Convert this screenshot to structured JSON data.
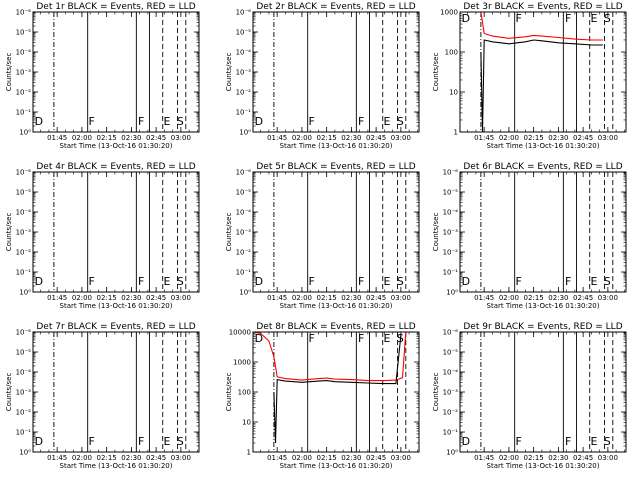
{
  "chart_data": [
    {
      "type": "line",
      "title": "Det 1r BLACK = Events, RED = LLD",
      "xlabel": "Start Time (13-Oct-16 01:30:20)",
      "ylabel": "Counts/sec",
      "yticks": [
        "10⁰",
        "10⁻¹",
        "10⁻²",
        "10⁻³",
        "10⁻⁴",
        "10⁻⁵",
        "10⁻⁶"
      ],
      "ylog": true,
      "ylim_exp": [
        -6,
        0
      ],
      "xticks": [
        "01:45",
        "02:00",
        "02:15",
        "02:30",
        "02:45",
        "03:00"
      ],
      "xlim": [
        "01:30:20",
        "03:11"
      ],
      "markers": [
        "D",
        "F",
        "F",
        "E",
        "S"
      ],
      "series": []
    },
    {
      "type": "line",
      "title": "Det 2r BLACK = Events, RED = LLD",
      "xlabel": "Start Time (13-Oct-16 01:30:20)",
      "ylabel": "Counts/sec",
      "yticks": [
        "10⁰",
        "10⁻¹",
        "10⁻²",
        "10⁻³",
        "10⁻⁴",
        "10⁻⁵",
        "10⁻⁶"
      ],
      "ylog": true,
      "ylim_exp": [
        -6,
        0
      ],
      "xticks": [
        "01:45",
        "02:00",
        "02:15",
        "02:30",
        "02:45",
        "03:00"
      ],
      "xlim": [
        "01:30:20",
        "03:11"
      ],
      "markers": [
        "D",
        "F",
        "F",
        "E",
        "S"
      ],
      "series": []
    },
    {
      "type": "line",
      "title": "Det 3r BLACK = Events, RED = LLD",
      "xlabel": "Start Time (13-Oct-16 01:30:20)",
      "ylabel": "Counts/sec",
      "yticks": [
        "1",
        "10",
        "100",
        "1000"
      ],
      "ylog": true,
      "ylim_exp": [
        0,
        3
      ],
      "xticks": [
        "01:45",
        "02:00",
        "02:15",
        "02:30",
        "02:45",
        "03:00"
      ],
      "xlim": [
        "01:30:20",
        "03:11"
      ],
      "markers": [
        "D",
        "F",
        "F",
        "E",
        "S"
      ],
      "series": [
        {
          "color": "#ff0000",
          "x": [
            "01:43",
            "01:45",
            "01:50",
            "02:00",
            "02:10",
            "02:15",
            "02:20",
            "02:30",
            "02:40",
            "02:50",
            "02:57"
          ],
          "y": [
            1000,
            290,
            250,
            220,
            240,
            260,
            250,
            230,
            210,
            200,
            200
          ]
        },
        {
          "color": "#000000",
          "x": [
            "01:43",
            "01:44",
            "01:45",
            "01:50",
            "02:00",
            "02:10",
            "02:15",
            "02:20",
            "02:30",
            "02:40",
            "02:50",
            "02:57"
          ],
          "y": [
            100,
            1,
            200,
            180,
            160,
            180,
            200,
            190,
            170,
            160,
            150,
            150
          ]
        }
      ]
    },
    {
      "type": "line",
      "title": "Det 4r BLACK = Events, RED = LLD",
      "xlabel": "Start Time (13-Oct-16 01:30:20)",
      "ylabel": "Counts/sec",
      "yticks": [
        "10⁰",
        "10⁻¹",
        "10⁻²",
        "10⁻³",
        "10⁻⁴",
        "10⁻⁵",
        "10⁻⁶"
      ],
      "ylog": true,
      "ylim_exp": [
        -6,
        0
      ],
      "xticks": [
        "01:45",
        "02:00",
        "02:15",
        "02:30",
        "02:45",
        "03:00"
      ],
      "xlim": [
        "01:30:20",
        "03:11"
      ],
      "markers": [
        "D",
        "F",
        "F",
        "E",
        "S"
      ],
      "series": []
    },
    {
      "type": "line",
      "title": "Det 5r BLACK = Events, RED = LLD",
      "xlabel": "Start Time (13-Oct-16 01:30:20)",
      "ylabel": "Counts/sec",
      "yticks": [
        "10⁰",
        "10⁻¹",
        "10⁻²",
        "10⁻³",
        "10⁻⁴",
        "10⁻⁵",
        "10⁻⁶"
      ],
      "ylog": true,
      "ylim_exp": [
        -6,
        0
      ],
      "xticks": [
        "01:45",
        "02:00",
        "02:15",
        "02:30",
        "02:45",
        "03:00"
      ],
      "xlim": [
        "01:30:20",
        "03:11"
      ],
      "markers": [
        "D",
        "F",
        "F",
        "E",
        "S"
      ],
      "series": []
    },
    {
      "type": "line",
      "title": "Det 6r BLACK = Events, RED = LLD",
      "xlabel": "Start Time (13-Oct-16 01:30:20)",
      "ylabel": "Counts/sec",
      "yticks": [
        "10⁰",
        "10⁻¹",
        "10⁻²",
        "10⁻³",
        "10⁻⁴",
        "10⁻⁵",
        "10⁻⁶"
      ],
      "ylog": true,
      "ylim_exp": [
        -6,
        0
      ],
      "xticks": [
        "01:45",
        "02:00",
        "02:15",
        "02:30",
        "02:45",
        "03:00"
      ],
      "xlim": [
        "01:30:20",
        "03:11"
      ],
      "markers": [
        "D",
        "F",
        "F",
        "E",
        "S"
      ],
      "series": []
    },
    {
      "type": "line",
      "title": "Det 7r BLACK = Events, RED = LLD",
      "xlabel": "Start Time (13-Oct-16 01:30:20)",
      "ylabel": "Counts/sec",
      "yticks": [
        "10⁰",
        "10⁻¹",
        "10⁻²",
        "10⁻³",
        "10⁻⁴",
        "10⁻⁵",
        "10⁻⁶"
      ],
      "ylog": true,
      "ylim_exp": [
        -6,
        0
      ],
      "xticks": [
        "01:45",
        "02:00",
        "02:15",
        "02:30",
        "02:45",
        "03:00"
      ],
      "xlim": [
        "01:30:20",
        "03:11"
      ],
      "markers": [
        "D",
        "F",
        "F",
        "E",
        "S"
      ],
      "series": []
    },
    {
      "type": "line",
      "title": "Det 8r BLACK = Events, RED = LLD",
      "xlabel": "Start Time (13-Oct-16 01:30:20)",
      "ylabel": "Counts/sec",
      "yticks": [
        "1",
        "10",
        "100",
        "1000",
        "10000"
      ],
      "ylog": true,
      "ylim_exp": [
        0,
        4
      ],
      "xticks": [
        "01:45",
        "02:00",
        "02:15",
        "02:30",
        "02:45",
        "03:00"
      ],
      "xlim": [
        "01:30:20",
        "03:11"
      ],
      "markers": [
        "D",
        "F",
        "F",
        "E",
        "S"
      ],
      "series": [
        {
          "color": "#ff0000",
          "x": [
            "01:30:20",
            "01:35",
            "01:40",
            "01:43",
            "01:45",
            "01:50",
            "02:00",
            "02:10",
            "02:15",
            "02:20",
            "02:30",
            "02:40",
            "02:50",
            "02:57",
            "03:01",
            "03:03"
          ],
          "y": [
            10000,
            9000,
            5000,
            1500,
            320,
            280,
            250,
            280,
            290,
            270,
            260,
            240,
            240,
            250,
            300,
            10000
          ]
        },
        {
          "color": "#000000",
          "x": [
            "01:43",
            "01:44",
            "01:45",
            "01:50",
            "02:00",
            "02:10",
            "02:15",
            "02:20",
            "02:30",
            "02:40",
            "02:50",
            "02:57",
            "03:00"
          ],
          "y": [
            100,
            2,
            260,
            230,
            210,
            230,
            240,
            220,
            210,
            200,
            190,
            190,
            8000
          ]
        }
      ]
    },
    {
      "type": "line",
      "title": "Det 9r BLACK = Events, RED = LLD",
      "xlabel": "Start Time (13-Oct-16 01:30:20)",
      "ylabel": "Counts/sec",
      "yticks": [
        "10⁰",
        "10⁻¹",
        "10⁻²",
        "10⁻³",
        "10⁻⁴",
        "10⁻⁵",
        "10⁻⁶"
      ],
      "ylog": true,
      "ylim_exp": [
        -6,
        0
      ],
      "xticks": [
        "01:45",
        "02:00",
        "02:15",
        "02:30",
        "02:45",
        "03:00"
      ],
      "xlim": [
        "01:30:20",
        "03:11"
      ],
      "markers": [
        "D",
        "F",
        "F",
        "E",
        "S"
      ],
      "series": []
    }
  ]
}
